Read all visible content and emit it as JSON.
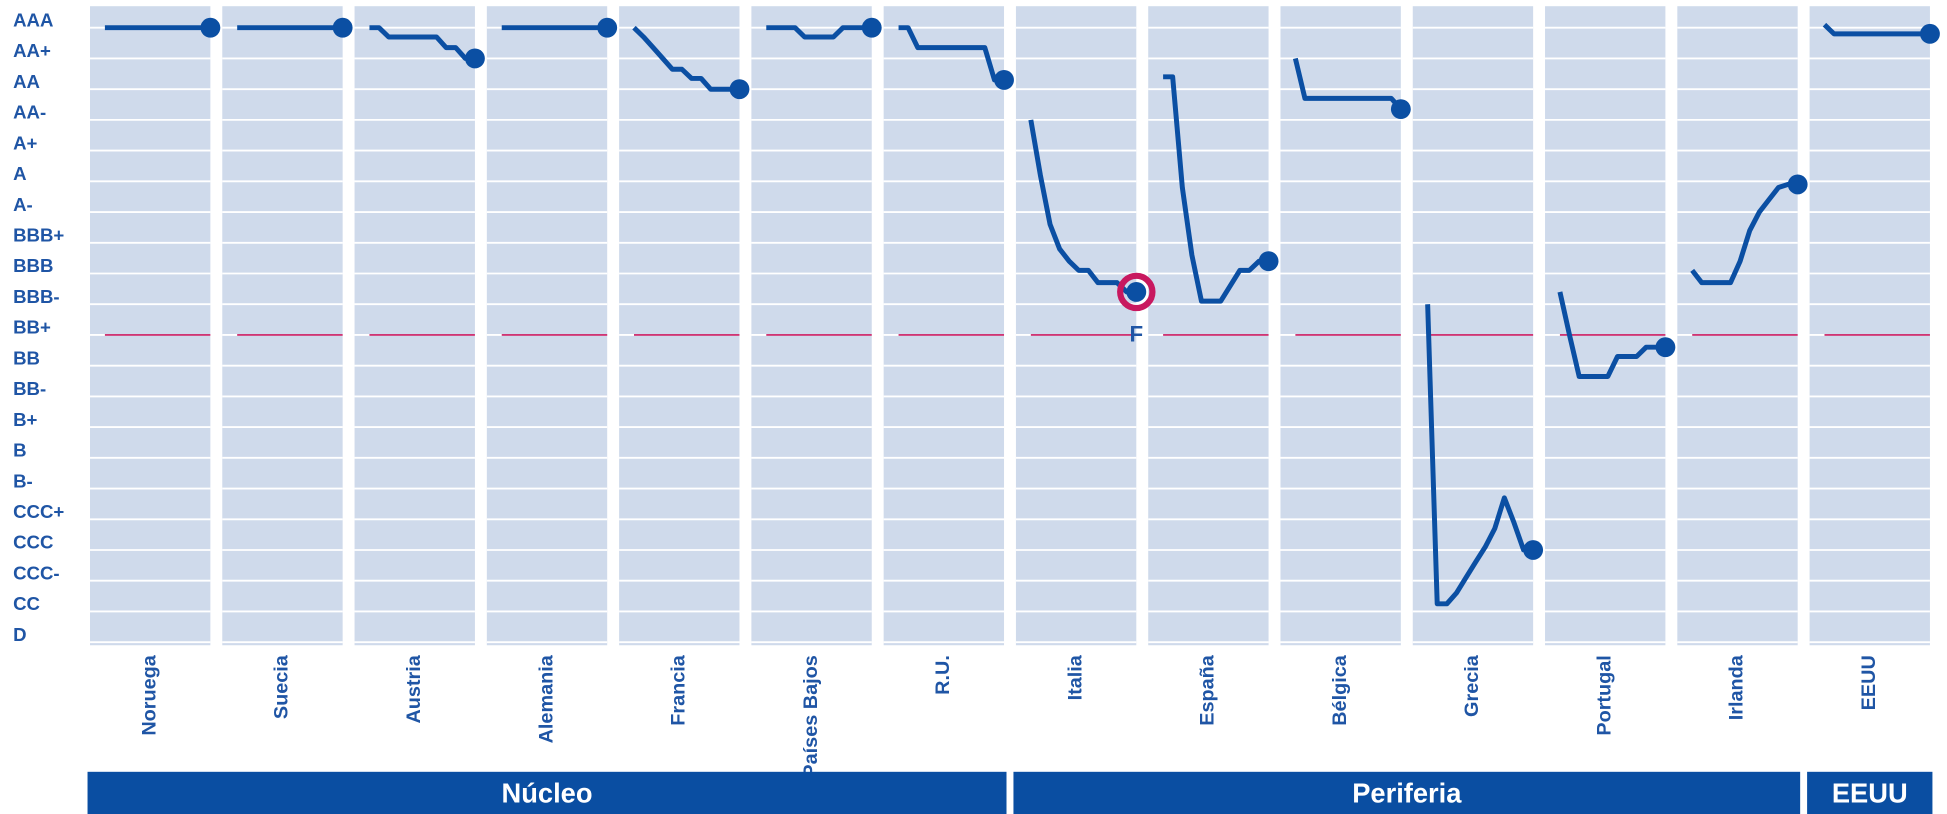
{
  "chart_data": {
    "type": "line",
    "ylim": [
      -0.1,
      20.7
    ],
    "yticks": [
      {
        "value": 20,
        "label": "AAA"
      },
      {
        "value": 19,
        "label": "AA+"
      },
      {
        "value": 18,
        "label": "AA"
      },
      {
        "value": 17,
        "label": "AA-"
      },
      {
        "value": 16,
        "label": "A+"
      },
      {
        "value": 15,
        "label": "A"
      },
      {
        "value": 14,
        "label": "A-"
      },
      {
        "value": 13,
        "label": "BBB+"
      },
      {
        "value": 12,
        "label": "BBB"
      },
      {
        "value": 11,
        "label": "BBB-"
      },
      {
        "value": 10,
        "label": "BB+"
      },
      {
        "value": 9,
        "label": "BB"
      },
      {
        "value": 8,
        "label": "BB-"
      },
      {
        "value": 7,
        "label": "B+"
      },
      {
        "value": 6,
        "label": "B"
      },
      {
        "value": 5,
        "label": "B-"
      },
      {
        "value": 4,
        "label": "CCC+"
      },
      {
        "value": 3,
        "label": "CCC"
      },
      {
        "value": 2,
        "label": "CCC-"
      },
      {
        "value": 1,
        "label": "CC"
      },
      {
        "value": 0,
        "label": "D"
      }
    ],
    "grid": true,
    "reference_line": 10,
    "line_color": "#0b4fa3",
    "reference_color": "#c8185f",
    "groups": [
      {
        "name": "Núcleo",
        "series": [
          {
            "name": "Noruega",
            "values": [
              20,
              20,
              20,
              20,
              20,
              20,
              20,
              20,
              20,
              20,
              20,
              20
            ]
          },
          {
            "name": "Suecia",
            "values": [
              20,
              20,
              20,
              20,
              20,
              20,
              20,
              20,
              20,
              20,
              20,
              20
            ]
          },
          {
            "name": "Austria",
            "values": [
              20,
              20,
              19.7,
              19.7,
              19.7,
              19.7,
              19.7,
              19.7,
              19.35,
              19.35,
              19,
              19
            ]
          },
          {
            "name": "Alemania",
            "values": [
              20,
              20,
              20,
              20,
              20,
              20,
              20,
              20,
              20,
              20,
              20,
              20
            ]
          },
          {
            "name": "Francia",
            "values": [
              20,
              19.7,
              19.35,
              19,
              18.65,
              18.65,
              18.35,
              18.35,
              18,
              18,
              18,
              18
            ]
          },
          {
            "name": "Países Bajos",
            "values": [
              20,
              20,
              20,
              20,
              19.7,
              19.7,
              19.7,
              19.7,
              20,
              20,
              20,
              20
            ]
          },
          {
            "name": "R.U.",
            "values": [
              20,
              20,
              19.35,
              19.35,
              19.35,
              19.35,
              19.35,
              19.35,
              19.35,
              19.35,
              18.3,
              18.3
            ]
          }
        ]
      },
      {
        "name": "Periferia",
        "series": [
          {
            "name": "Italia",
            "values": [
              17,
              15.2,
              13.6,
              12.8,
              12.4,
              12.1,
              12.1,
              11.7,
              11.7,
              11.7,
              11.4,
              11.4
            ],
            "highlight": "F"
          },
          {
            "name": "España",
            "values": [
              18.4,
              18.4,
              14.8,
              12.6,
              11.1,
              11.1,
              11.1,
              11.6,
              12.1,
              12.1,
              12.4,
              12.4
            ]
          },
          {
            "name": "Bélgica",
            "values": [
              19,
              17.7,
              17.7,
              17.7,
              17.7,
              17.7,
              17.7,
              17.7,
              17.7,
              17.7,
              17.7,
              17.35
            ]
          },
          {
            "name": "Grecia",
            "values": [
              11,
              1.25,
              1.25,
              1.6,
              2.1,
              2.6,
              3.1,
              3.7,
              4.7,
              3.9,
              3,
              3
            ]
          },
          {
            "name": "Portugal",
            "values": [
              11.4,
              10,
              8.65,
              8.65,
              8.65,
              8.65,
              9.3,
              9.3,
              9.3,
              9.6,
              9.6,
              9.6
            ]
          },
          {
            "name": "Irlanda",
            "values": [
              12.1,
              11.7,
              11.7,
              11.7,
              11.7,
              12.4,
              13.4,
              14,
              14.4,
              14.8,
              14.9,
              14.9
            ]
          }
        ]
      },
      {
        "name": "EEUU",
        "series": [
          {
            "name": "EEUU",
            "values": [
              20.1,
              19.8,
              19.8,
              19.8,
              19.8,
              19.8,
              19.8,
              19.8,
              19.8,
              19.8,
              19.8,
              19.8
            ]
          }
        ]
      }
    ]
  }
}
